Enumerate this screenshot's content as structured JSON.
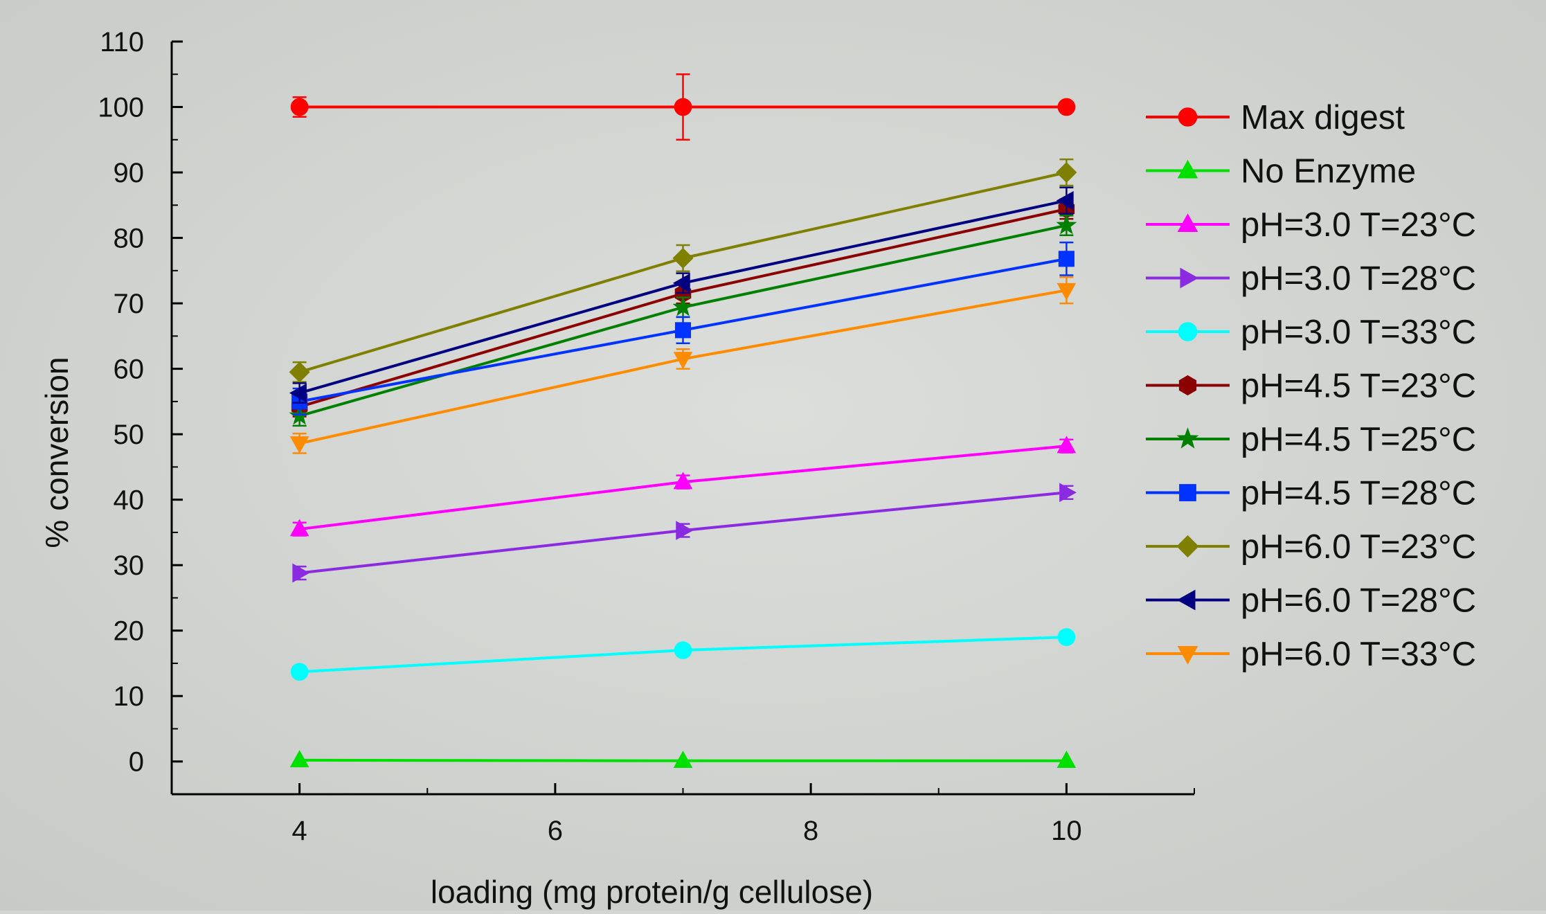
{
  "chart_data": {
    "type": "line",
    "title": "",
    "xlabel": "loading (mg protein/g cellulose)",
    "ylabel": "% conversion",
    "xlim": [
      3,
      11
    ],
    "ylim": [
      -5,
      110
    ],
    "xticks": [
      4,
      6,
      8,
      10
    ],
    "yticks": [
      0,
      10,
      20,
      30,
      40,
      50,
      60,
      70,
      80,
      90,
      100,
      110
    ],
    "grid": false,
    "legend_position": "right",
    "x": [
      4,
      7,
      10
    ],
    "series": [
      {
        "name": "Max digest",
        "marker": "circle",
        "color": "#ff0000",
        "values": [
          100,
          100,
          100
        ],
        "errors": [
          1.5,
          5,
          0.5
        ]
      },
      {
        "name": "No Enzyme",
        "marker": "triangle-up",
        "color": "#00e000",
        "values": [
          0.2,
          0.1,
          0.1
        ],
        "errors": [
          0,
          0,
          0
        ]
      },
      {
        "name": "pH=3.0 T=23°C",
        "marker": "triangle-up",
        "color": "#ff00ff",
        "values": [
          35.5,
          42.7,
          48.2
        ],
        "errors": [
          1,
          1,
          1
        ]
      },
      {
        "name": "pH=3.0 T=28°C",
        "marker": "triangle-right",
        "color": "#8a2be2",
        "values": [
          28.8,
          35.3,
          41.1
        ],
        "errors": [
          1,
          1,
          1
        ]
      },
      {
        "name": "pH=3.0 T=33°C",
        "marker": "circle",
        "color": "#00ffff",
        "values": [
          13.7,
          17.0,
          19.0
        ],
        "errors": [
          0.8,
          0.8,
          0.8
        ]
      },
      {
        "name": "pH=4.5 T=23°C",
        "marker": "hexagon",
        "color": "#8b0000",
        "values": [
          54.2,
          71.5,
          84.4
        ],
        "errors": [
          1.5,
          1.5,
          1.5
        ]
      },
      {
        "name": "pH=4.5 T=25°C",
        "marker": "star",
        "color": "#008000",
        "values": [
          52.8,
          69.4,
          81.9
        ],
        "errors": [
          1.5,
          1.5,
          1.5
        ]
      },
      {
        "name": "pH=4.5 T=28°C",
        "marker": "square",
        "color": "#0033ff",
        "values": [
          55.0,
          65.9,
          76.8
        ],
        "errors": [
          2,
          2,
          2.5
        ]
      },
      {
        "name": "pH=6.0 T=23°C",
        "marker": "diamond",
        "color": "#808000",
        "values": [
          59.5,
          76.9,
          90.0
        ],
        "errors": [
          1.5,
          2,
          2
        ]
      },
      {
        "name": "pH=6.0 T=28°C",
        "marker": "triangle-left",
        "color": "#000080",
        "values": [
          56.3,
          73.1,
          85.7
        ],
        "errors": [
          1.5,
          1.5,
          2
        ]
      },
      {
        "name": "pH=6.0 T=33°C",
        "marker": "triangle-down",
        "color": "#ff8c00",
        "values": [
          48.6,
          61.5,
          72.0
        ],
        "errors": [
          1.5,
          1.5,
          2
        ]
      }
    ]
  }
}
